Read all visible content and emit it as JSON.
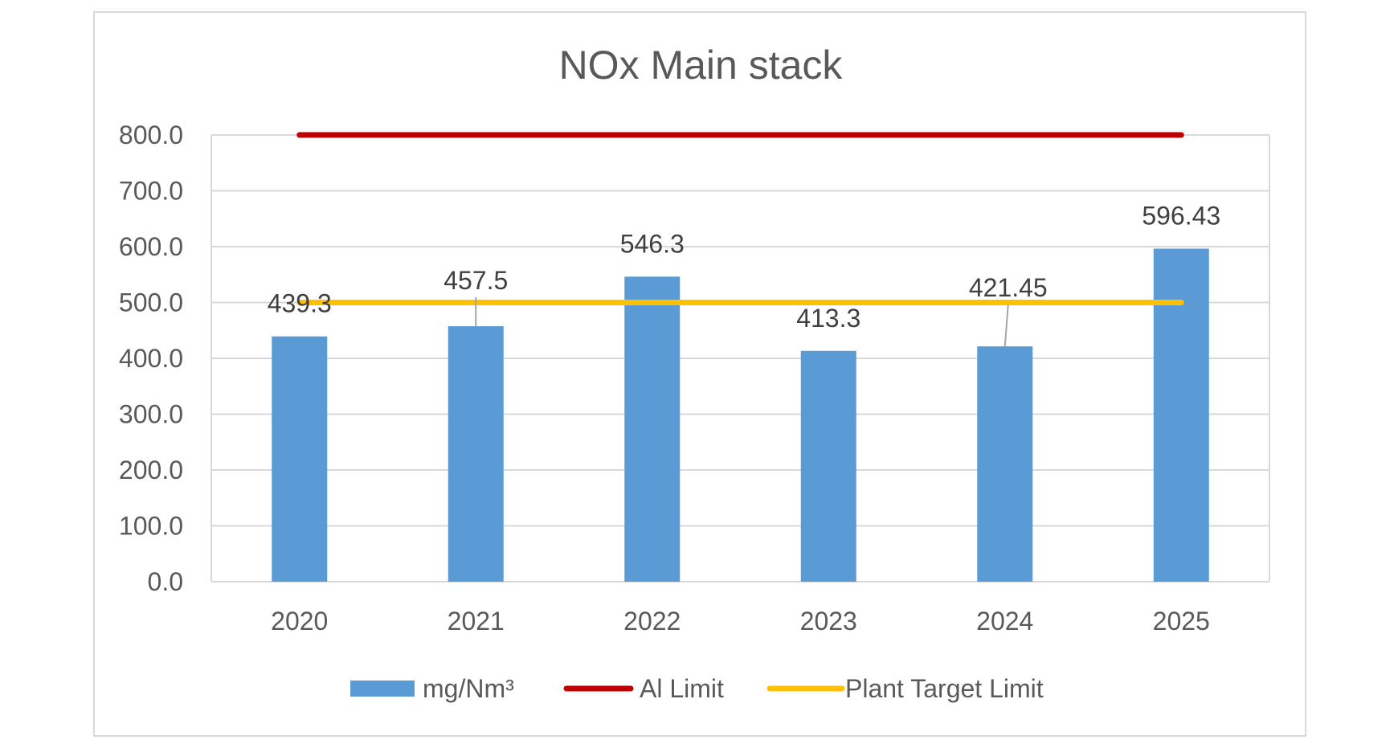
{
  "chart_data": {
    "type": "bar",
    "title": "NOx Main stack",
    "xlabel": "",
    "ylabel": "",
    "categories": [
      "2020",
      "2021",
      "2022",
      "2023",
      "2024",
      "2025"
    ],
    "ylim": [
      0,
      800
    ],
    "yticks": [
      0,
      100,
      200,
      300,
      400,
      500,
      600,
      700,
      800
    ],
    "ytick_labels": [
      "0.0",
      "100.0",
      "200.0",
      "300.0",
      "400.0",
      "500.0",
      "600.0",
      "700.0",
      "800.0"
    ],
    "grid": true,
    "legend_position": "bottom",
    "series": [
      {
        "name": "mg/Nm³",
        "kind": "bar",
        "color": "#5b9bd5",
        "values": [
          439.3,
          457.5,
          546.3,
          413.3,
          421.45,
          596.43
        ],
        "data_labels": [
          "439.3",
          "457.5",
          "546.3",
          "413.3",
          "421.45",
          "596.43"
        ]
      },
      {
        "name": "Al Limit",
        "kind": "line",
        "color": "#c00000",
        "values": [
          800,
          800,
          800,
          800,
          800,
          800
        ]
      },
      {
        "name": "Plant Target Limit",
        "kind": "line",
        "color": "#ffc000",
        "values": [
          500,
          500,
          500,
          500,
          500,
          500
        ]
      }
    ]
  }
}
